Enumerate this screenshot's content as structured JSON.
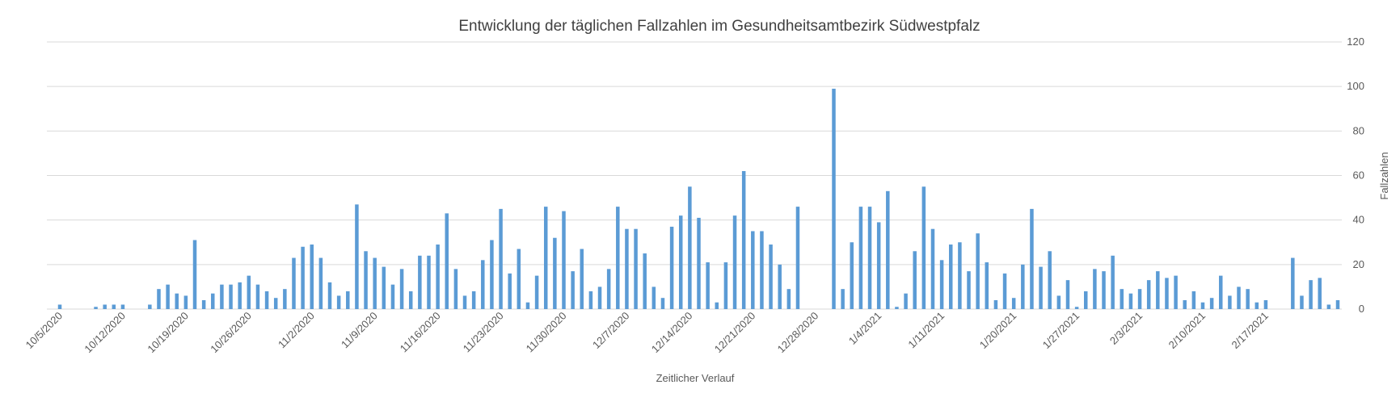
{
  "chart_data": {
    "type": "bar",
    "title": "Entwicklung der täglichen Fallzahlen im Gesundheitsamtbezirk Südwestpfalz",
    "xlabel": "Zeitlicher Verlauf",
    "ylabel": "Fallzahlen",
    "y_axis_side": "right",
    "ylim": [
      0,
      120
    ],
    "yticks": [
      "0",
      "20",
      "40",
      "60",
      "80",
      "100",
      "120"
    ],
    "grid": true,
    "legend": "none",
    "bar_color": "#5b9bd5",
    "x_tick_labels": [
      "10/5/2020",
      "10/12/2020",
      "10/19/2020",
      "10/26/2020",
      "11/2/2020",
      "11/9/2020",
      "11/16/2020",
      "11/23/2020",
      "11/30/2020",
      "12/7/2020",
      "12/14/2020",
      "12/21/2020",
      "12/28/2020",
      "1/4/2021",
      "1/11/2021",
      "1/20/2021",
      "1/27/2021",
      "2/3/2021",
      "2/10/2021",
      "2/17/2021"
    ],
    "values": [
      2,
      0,
      0,
      0,
      1,
      2,
      2,
      2,
      0,
      0,
      2,
      9,
      11,
      7,
      6,
      31,
      4,
      7,
      11,
      11,
      12,
      15,
      11,
      8,
      5,
      9,
      23,
      28,
      29,
      23,
      12,
      6,
      8,
      47,
      26,
      23,
      19,
      11,
      18,
      8,
      24,
      24,
      29,
      43,
      18,
      6,
      8,
      22,
      31,
      45,
      16,
      27,
      3,
      15,
      46,
      32,
      44,
      17,
      27,
      8,
      10,
      18,
      46,
      36,
      36,
      25,
      10,
      5,
      37,
      42,
      55,
      41,
      21,
      3,
      21,
      42,
      62,
      35,
      35,
      29,
      20,
      9,
      46,
      0,
      0,
      0,
      99,
      9,
      30,
      46,
      46,
      39,
      53,
      1,
      7,
      26,
      55,
      36,
      22,
      29,
      30,
      17,
      34,
      21,
      4,
      16,
      5,
      20,
      45,
      19,
      26,
      6,
      13,
      1,
      8,
      18,
      17,
      24,
      9,
      7,
      9,
      13,
      17,
      14,
      15,
      4,
      8,
      3,
      5,
      15,
      6,
      10,
      9,
      3,
      4,
      0,
      0,
      23,
      6,
      13,
      14,
      2,
      4
    ]
  }
}
